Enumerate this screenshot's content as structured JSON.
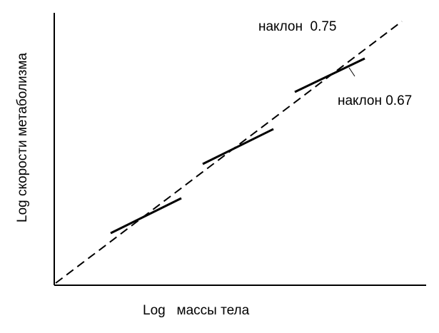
{
  "diagram": {
    "y_axis_label": "Log скорости метаболизма",
    "x_axis_label": "Log   массы тела",
    "annotations": [
      "наклон  0.75",
      "наклон 0.67"
    ]
  }
}
